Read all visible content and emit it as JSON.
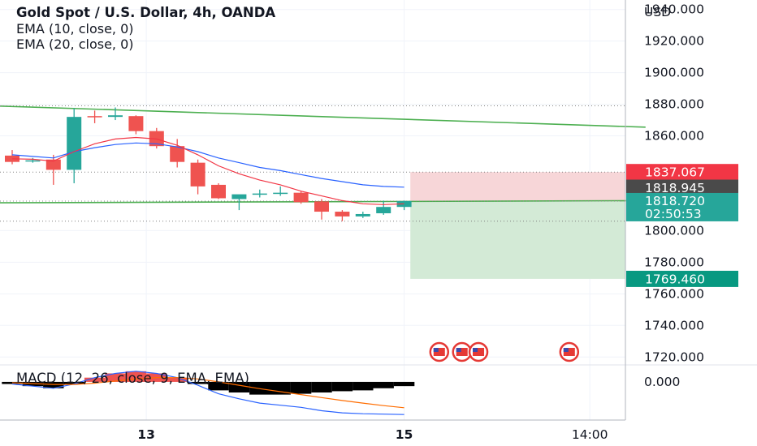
{
  "header": {
    "title": "Gold Spot / U.S. Dollar, 4h, OANDA",
    "ema_fast": "EMA (10, close, 0)",
    "ema_slow": "EMA (20, close, 0)",
    "macd_label": "MACD (12, 26, close, 9, EMA, EMA)"
  },
  "colors": {
    "up": "#26a69a",
    "down": "#ef5350",
    "ema_fast": "#f23645",
    "ema_slow": "#2962ff",
    "trendline": "#4caf50",
    "stop_zone": "#f7d6d8",
    "target_zone": "#d3ead6",
    "stop_tag": "#f23645",
    "mid_tag": "#4a4a4a",
    "price_tag": "#26a69a",
    "target_tag": "#089981"
  },
  "chart_data": {
    "type": "candlestick",
    "title": "Gold Spot / U.S. Dollar, 4h, OANDA",
    "currency": "USD",
    "y_axis": {
      "label": "USD",
      "ticks": [
        "1940.000",
        "1920.000",
        "1900.000",
        "1880.000",
        "1860.000",
        "1800.000",
        "1780.000",
        "1760.000",
        "1740.000",
        "1720.000"
      ],
      "tick_values": [
        1940,
        1920,
        1900,
        1880,
        1860,
        1800,
        1780,
        1760,
        1740,
        1720
      ],
      "range": [
        1715,
        1946
      ]
    },
    "x_axis": {
      "ticks": [
        "13",
        "15",
        "14:00"
      ],
      "tick_index": [
        6.5,
        19,
        28
      ]
    },
    "candles": [
      {
        "o": 1847.5,
        "h": 1851,
        "l": 1842,
        "c": 1843.5
      },
      {
        "o": 1844.0,
        "h": 1846,
        "l": 1843,
        "c": 1844.5
      },
      {
        "o": 1845.0,
        "h": 1848,
        "l": 1829,
        "c": 1838.5
      },
      {
        "o": 1838.5,
        "h": 1877.5,
        "l": 1830,
        "c": 1872.0
      },
      {
        "o": 1872.5,
        "h": 1876,
        "l": 1868,
        "c": 1872.0
      },
      {
        "o": 1872.0,
        "h": 1878,
        "l": 1870,
        "c": 1873.0
      },
      {
        "o": 1872.5,
        "h": 1873,
        "l": 1861,
        "c": 1863.0
      },
      {
        "o": 1863.0,
        "h": 1865,
        "l": 1852,
        "c": 1853.5
      },
      {
        "o": 1853.5,
        "h": 1858,
        "l": 1840,
        "c": 1843.5
      },
      {
        "o": 1843.0,
        "h": 1845,
        "l": 1823,
        "c": 1828.0
      },
      {
        "o": 1829.0,
        "h": 1830,
        "l": 1820,
        "c": 1820.5
      },
      {
        "o": 1820.0,
        "h": 1822,
        "l": 1813,
        "c": 1823.0
      },
      {
        "o": 1823.0,
        "h": 1826,
        "l": 1821,
        "c": 1823.5
      },
      {
        "o": 1823.5,
        "h": 1828,
        "l": 1822,
        "c": 1824.0
      },
      {
        "o": 1824.0,
        "h": 1825,
        "l": 1817,
        "c": 1818.0
      },
      {
        "o": 1818.5,
        "h": 1820,
        "l": 1807,
        "c": 1812.0
      },
      {
        "o": 1812.0,
        "h": 1813,
        "l": 1806,
        "c": 1809.0
      },
      {
        "o": 1809.0,
        "h": 1812,
        "l": 1808,
        "c": 1810.5
      },
      {
        "o": 1811.0,
        "h": 1819,
        "l": 1810,
        "c": 1815.0
      },
      {
        "o": 1815.0,
        "h": 1819,
        "l": 1813,
        "c": 1818.7
      }
    ],
    "ema_fast": [
      1845.5,
      1845.2,
      1844.0,
      1850.0,
      1855.0,
      1858.0,
      1859.0,
      1858.0,
      1854.0,
      1848.0,
      1841.0,
      1836.0,
      1832.0,
      1829.0,
      1825.0,
      1822.0,
      1819.0,
      1817.0,
      1816.5,
      1817.0
    ],
    "ema_slow": [
      1848.0,
      1847.0,
      1846.0,
      1850.0,
      1852.5,
      1854.5,
      1855.5,
      1855.0,
      1853.0,
      1850.0,
      1846.0,
      1843.0,
      1840.0,
      1838.0,
      1835.5,
      1833.0,
      1831.0,
      1829.0,
      1828.0,
      1827.5
    ],
    "trendlines": [
      {
        "name": "upper",
        "from": {
          "i": -3.3,
          "y": 1880.0
        },
        "to": {
          "i": 30.7,
          "y": 1865.5
        }
      },
      {
        "name": "lower",
        "from": {
          "i": -3.3,
          "y": 1817.5
        },
        "to": {
          "i": 30.7,
          "y": 1819.0
        }
      }
    ],
    "levels": [
      {
        "value": 1837.067,
        "label": "1837.067",
        "role": "stop"
      },
      {
        "value": 1818.945,
        "label": "1818.945",
        "role": "mid"
      },
      {
        "value": 1818.72,
        "label": "1818.720",
        "role": "last_price",
        "countdown": "02:50:53"
      },
      {
        "value": 1769.46,
        "label": "1769.460",
        "role": "target"
      }
    ],
    "position": {
      "entry": 1818.72,
      "stop": 1837.067,
      "target": 1769.46,
      "start_index": 19.3
    },
    "event_markers": [
      20.7,
      21.8,
      22.6,
      27.0
    ],
    "macd": {
      "label": "MACD (12, 26, close, 9, EMA, EMA)",
      "zero_label": "0.000",
      "histogram": [
        -0.5,
        -1.0,
        -1.5,
        -0.5,
        1.0,
        2.0,
        2.5,
        2.0,
        1.0,
        -0.5,
        -2.0,
        -2.5,
        -3.0,
        -3.0,
        -2.8,
        -2.5,
        -2.2,
        -2.0,
        -1.5,
        -1.0
      ],
      "macd": [
        -0.5,
        -1.0,
        -1.5,
        -0.5,
        1.0,
        2.0,
        2.5,
        2.0,
        1.0,
        -0.8,
        -2.8,
        -4.0,
        -5.0,
        -5.5,
        -6.0,
        -6.8,
        -7.3,
        -7.5,
        -7.6,
        -7.7
      ],
      "signal": [
        -0.2,
        -0.4,
        -0.6,
        -0.6,
        -0.3,
        0.2,
        0.7,
        1.0,
        1.0,
        0.7,
        0.0,
        -0.8,
        -1.6,
        -2.3,
        -3.0,
        -3.7,
        -4.4,
        -5.0,
        -5.6,
        -6.1
      ],
      "range": [
        -9,
        4
      ]
    }
  }
}
